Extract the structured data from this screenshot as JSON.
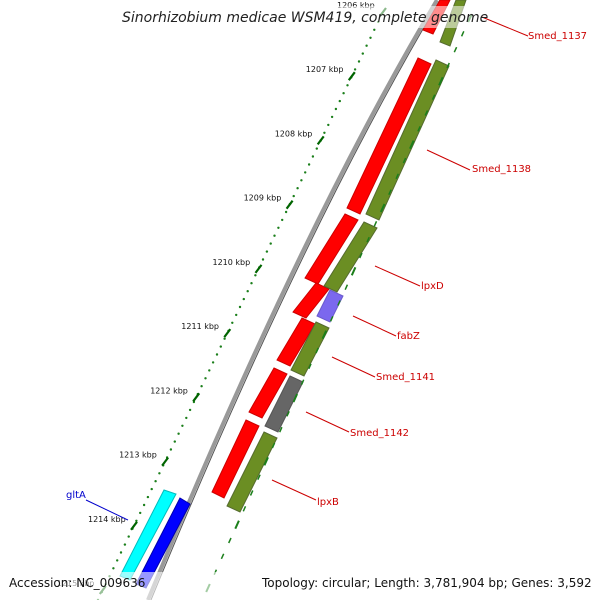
{
  "title": "Sinorhizobium medicae WSM419, complete genome",
  "accession": "Accession: NC_009636",
  "topology": "Topology: circular; Length: 3,781,904 bp; Genes: 3,592",
  "ticks": [
    {
      "label": "1206 kbp",
      "bp": 1206000
    },
    {
      "label": "1207 kbp",
      "bp": 1207000
    },
    {
      "label": "1208 kbp",
      "bp": 1208000
    },
    {
      "label": "1209 kbp",
      "bp": 1209000
    },
    {
      "label": "1210 kbp",
      "bp": 1210000
    },
    {
      "label": "1211 kbp",
      "bp": 1211000
    },
    {
      "label": "1212 kbp",
      "bp": 1212000
    },
    {
      "label": "1213 kbp",
      "bp": 1213000
    },
    {
      "label": "1214 kbp",
      "bp": 1214000
    },
    {
      "label": "1215 kbp",
      "bp": 1215000
    }
  ],
  "genes": [
    {
      "name": "Smed_1137",
      "color": "#cc0000"
    },
    {
      "name": "Smed_1138",
      "color": "#cc0000"
    },
    {
      "name": "lpxD",
      "color": "#cc0000"
    },
    {
      "name": "fabZ",
      "color": "#cc0000"
    },
    {
      "name": "Smed_1141",
      "color": "#cc0000"
    },
    {
      "name": "Smed_1142",
      "color": "#cc0000"
    },
    {
      "name": "lpxB",
      "color": "#cc0000"
    },
    {
      "name": "gltA",
      "color": "#0000cc"
    }
  ],
  "colors": {
    "cds": "#ff0000",
    "gene_track": "#6b8e23",
    "fabZ_cds": "#7b68ee",
    "gray_cds": "#666666",
    "gltA_cds": "#00ffff",
    "gltA_gene": "#0000ff",
    "backbone": "#888888",
    "ticks_major": "#006400",
    "ticks_minor": "#228b22"
  }
}
